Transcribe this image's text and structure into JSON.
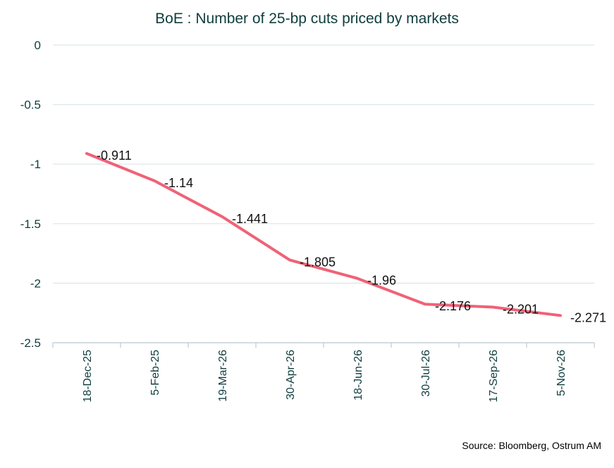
{
  "chart_data": {
    "type": "line",
    "title": "BoE : Number of 25-bp cuts priced by markets",
    "source": "Source: Bloomberg,  Ostrum AM",
    "categories": [
      "18-Dec-25",
      "5-Feb-25",
      "19-Mar-26",
      "30-Apr-26",
      "18-Jun-26",
      "30-Jul-26",
      "17-Sep-26",
      "5-Nov-26"
    ],
    "values": [
      -0.911,
      -1.14,
      -1.441,
      -1.805,
      -1.96,
      -2.176,
      -2.201,
      -2.271
    ],
    "data_labels": [
      "-0.911",
      "-1.14",
      "-1.441",
      "-1.805",
      "-1.96",
      "-2.176",
      "-2.201",
      "-2.271"
    ],
    "yticks": [
      "0",
      "-0.5",
      "-1",
      "-1.5",
      "-2",
      "-2.5"
    ],
    "ytick_values": [
      0,
      -0.5,
      -1,
      -1.5,
      -2,
      -2.5
    ],
    "ylim": [
      -2.5,
      0
    ],
    "xlabel": "",
    "ylabel": "",
    "grid": true,
    "legend": "none",
    "colors": {
      "line": "#F06277",
      "grid": "#DCE6EA",
      "text": "#0f3d3e",
      "axis": "#BFCBD1"
    }
  }
}
